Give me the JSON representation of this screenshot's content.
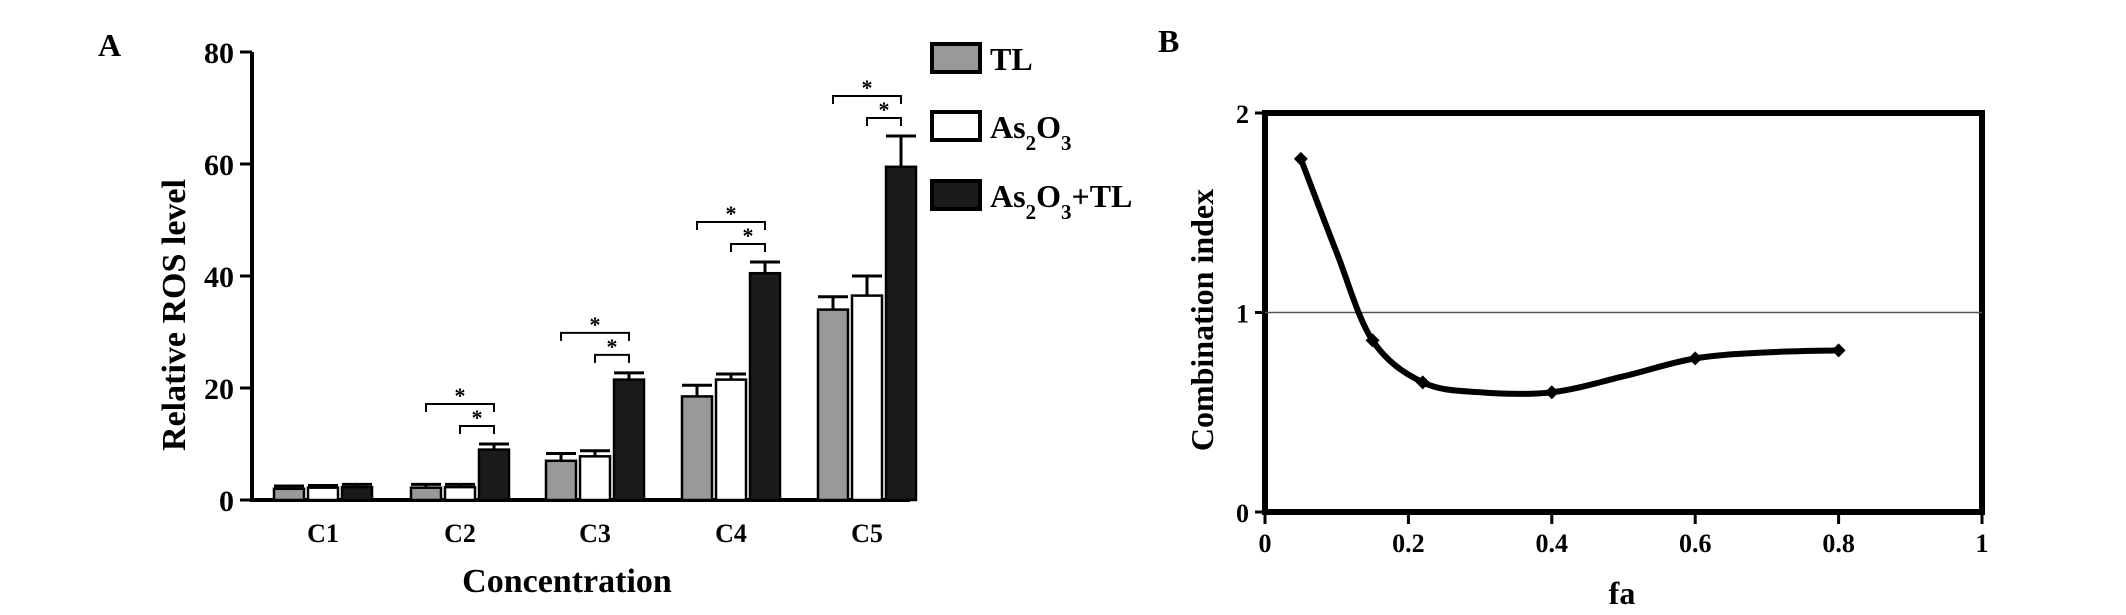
{
  "panels": {
    "A": {
      "label": "A"
    },
    "B": {
      "label": "B"
    }
  },
  "chart_data": [
    {
      "type": "bar",
      "panel": "A",
      "xlabel": "Concentration",
      "ylabel": "Relative ROS level",
      "ylim": [
        0,
        80
      ],
      "yticks": [
        0,
        20,
        40,
        60,
        80
      ],
      "categories": [
        "C1",
        "C2",
        "C3",
        "C4",
        "C5"
      ],
      "series": [
        {
          "name": "TL",
          "color": "#999999",
          "values": [
            2.0,
            2.2,
            7.0,
            18.5,
            34.0
          ],
          "errors": [
            0.5,
            0.6,
            1.3,
            2.0,
            2.3
          ]
        },
        {
          "name": "As2O3",
          "color": "#ffffff",
          "values": [
            2.2,
            2.3,
            7.8,
            21.5,
            36.5
          ],
          "errors": [
            0.4,
            0.5,
            1.0,
            1.0,
            3.5
          ]
        },
        {
          "name": "As2O3+TL",
          "color": "#1a1a1a",
          "values": [
            2.3,
            9.0,
            21.5,
            40.5,
            59.5
          ],
          "errors": [
            0.5,
            1.0,
            1.2,
            2.0,
            5.5
          ]
        }
      ],
      "legend_position": "top-right",
      "legend": [
        {
          "name": "TL",
          "text": "TL"
        },
        {
          "name": "As2O3",
          "base": "As",
          "sub1": "2",
          "mid": "O",
          "sub2": "3",
          "tail": ""
        },
        {
          "name": "As2O3+TL",
          "base": "As",
          "sub1": "2",
          "mid": "O",
          "sub2": "3",
          "tail": "+TL"
        }
      ],
      "significance": [
        {
          "category": "C2",
          "comparisons": [
            {
              "from": "TL",
              "to": "As2O3+TL",
              "label": "*"
            },
            {
              "from": "As2O3",
              "to": "As2O3+TL",
              "label": "*"
            }
          ]
        },
        {
          "category": "C3",
          "comparisons": [
            {
              "from": "TL",
              "to": "As2O3+TL",
              "label": "*"
            },
            {
              "from": "As2O3",
              "to": "As2O3+TL",
              "label": "*"
            }
          ]
        },
        {
          "category": "C4",
          "comparisons": [
            {
              "from": "TL",
              "to": "As2O3+TL",
              "label": "*"
            },
            {
              "from": "As2O3",
              "to": "As2O3+TL",
              "label": "*"
            }
          ]
        },
        {
          "category": "C5",
          "comparisons": [
            {
              "from": "TL",
              "to": "As2O3+TL",
              "label": "*"
            },
            {
              "from": "As2O3",
              "to": "As2O3+TL",
              "label": "*"
            }
          ]
        }
      ]
    },
    {
      "type": "line",
      "panel": "B",
      "xlabel": "fa",
      "ylabel": "Combination index",
      "xlim": [
        0,
        1
      ],
      "ylim": [
        0,
        2
      ],
      "xticks": [
        0,
        0.2,
        0.4,
        0.6,
        0.8,
        1
      ],
      "xtick_labels": [
        "0",
        "0.2",
        "0.4",
        "0.6",
        "0.8",
        "1"
      ],
      "yticks": [
        0,
        1,
        2
      ],
      "ytick_labels": [
        "0",
        "1",
        "2"
      ],
      "reference_line": 1,
      "points": {
        "x": [
          0.05,
          0.15,
          0.22,
          0.4,
          0.6,
          0.8
        ],
        "y": [
          1.77,
          0.86,
          0.65,
          0.6,
          0.77,
          0.81
        ]
      },
      "curve": {
        "x": [
          0.05,
          0.1,
          0.15,
          0.22,
          0.3,
          0.4,
          0.5,
          0.6,
          0.7,
          0.8
        ],
        "y": [
          1.77,
          1.3,
          0.86,
          0.65,
          0.6,
          0.6,
          0.68,
          0.77,
          0.8,
          0.81
        ]
      }
    }
  ]
}
